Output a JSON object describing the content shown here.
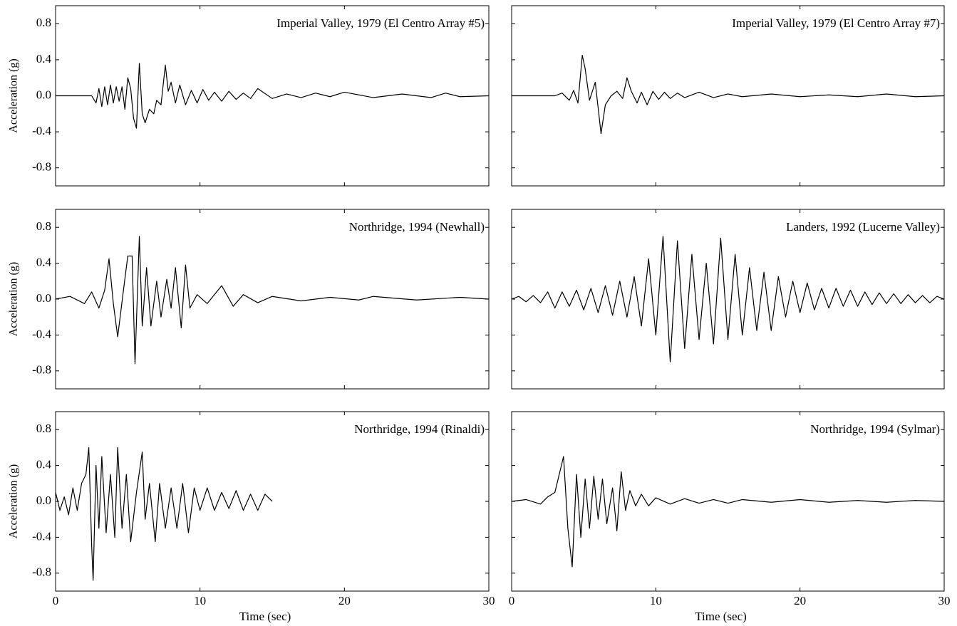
{
  "chart_data": [
    {
      "type": "line",
      "title": "Imperial Valley, 1979 (El Centro Array #5)",
      "ylabel": "Acceleration (g)",
      "color": "#000000",
      "x": [
        0,
        2.5,
        2.8,
        3.0,
        3.2,
        3.4,
        3.6,
        3.8,
        4.0,
        4.2,
        4.4,
        4.6,
        4.8,
        5.0,
        5.2,
        5.4,
        5.6,
        5.8,
        6.0,
        6.2,
        6.5,
        6.8,
        7.0,
        7.3,
        7.6,
        7.8,
        8.0,
        8.3,
        8.6,
        9.0,
        9.4,
        9.8,
        10.2,
        10.6,
        11,
        11.5,
        12,
        12.5,
        13,
        13.5,
        14,
        15,
        16,
        17,
        18,
        19,
        20,
        22,
        24,
        26,
        27,
        28,
        30
      ],
      "values": [
        0,
        0,
        -0.08,
        0.08,
        -0.12,
        0.1,
        -0.1,
        0.12,
        -0.08,
        0.1,
        -0.06,
        0.1,
        -0.15,
        0.2,
        0.08,
        -0.25,
        -0.36,
        0.36,
        -0.2,
        -0.3,
        -0.15,
        -0.2,
        -0.05,
        -0.1,
        0.34,
        0.05,
        0.15,
        -0.08,
        0.12,
        -0.1,
        0.06,
        -0.08,
        0.07,
        -0.05,
        0.04,
        -0.06,
        0.05,
        -0.04,
        0.03,
        -0.03,
        0.08,
        -0.03,
        0.02,
        -0.02,
        0.03,
        -0.01,
        0.04,
        -0.02,
        0.02,
        -0.02,
        0.03,
        -0.01,
        0
      ],
      "xlim": [
        0,
        30
      ],
      "ylim": [
        -1,
        1
      ],
      "xticks": [
        0,
        10,
        20,
        30
      ],
      "yticks": [
        -0.8,
        -0.4,
        {
          "value": 0,
          "label": "0.0"
        },
        0.4,
        0.8
      ],
      "xtick_labels": false,
      "ytick_labels": true
    },
    {
      "type": "line",
      "title": "Imperial Valley, 1979 (El Centro Array #7)",
      "color": "#000000",
      "x": [
        0,
        3,
        3.5,
        4,
        4.3,
        4.6,
        4.9,
        5.1,
        5.4,
        5.8,
        6.2,
        6.5,
        6.9,
        7.3,
        7.7,
        8.0,
        8.3,
        8.7,
        9.0,
        9.4,
        9.8,
        10.2,
        10.6,
        11,
        11.5,
        12,
        13,
        14,
        15,
        16,
        18,
        20,
        22,
        24,
        26,
        28,
        30
      ],
      "values": [
        0,
        0,
        0.03,
        -0.05,
        0.06,
        -0.08,
        0.45,
        0.3,
        -0.05,
        0.15,
        -0.42,
        -0.1,
        0,
        0.05,
        -0.03,
        0.2,
        0.05,
        -0.08,
        0.04,
        -0.1,
        0.05,
        -0.04,
        0.04,
        -0.03,
        0.03,
        -0.02,
        0.04,
        -0.02,
        0.02,
        -0.01,
        0.02,
        -0.01,
        0.01,
        -0.01,
        0.02,
        -0.01,
        0
      ],
      "xlim": [
        0,
        30
      ],
      "ylim": [
        -1,
        1
      ],
      "xticks": [
        0,
        10,
        20,
        30
      ],
      "yticks": [
        -0.8,
        -0.4,
        {
          "value": 0,
          "label": "0.0"
        },
        0.4,
        0.8
      ],
      "xtick_labels": false,
      "ytick_labels": false
    },
    {
      "type": "line",
      "title": "Northridge, 1994 (Newhall)",
      "ylabel": "Acceleration (g)",
      "color": "#000000",
      "x": [
        0,
        1,
        2,
        2.5,
        3,
        3.4,
        3.7,
        4.0,
        4.3,
        4.7,
        5.0,
        5.3,
        5.5,
        5.8,
        6.0,
        6.3,
        6.6,
        7.0,
        7.3,
        7.7,
        8.0,
        8.3,
        8.7,
        9.0,
        9.3,
        9.8,
        10.5,
        11.5,
        12.3,
        13,
        14,
        15,
        17,
        19,
        21,
        22,
        25,
        28,
        30
      ],
      "values": [
        0,
        0.03,
        -0.05,
        0.08,
        -0.1,
        0.1,
        0.45,
        -0.05,
        -0.42,
        0.1,
        0.48,
        0.48,
        -0.72,
        0.7,
        -0.3,
        0.35,
        -0.3,
        0.2,
        -0.2,
        0.22,
        -0.1,
        0.35,
        -0.32,
        0.38,
        -0.1,
        0.05,
        -0.05,
        0.15,
        -0.08,
        0.05,
        -0.04,
        0.03,
        -0.02,
        0.02,
        -0.01,
        0.03,
        -0.01,
        0.02,
        0
      ],
      "xlim": [
        0,
        30
      ],
      "ylim": [
        -1,
        1
      ],
      "xticks": [
        0,
        10,
        20,
        30
      ],
      "yticks": [
        -0.8,
        -0.4,
        {
          "value": 0,
          "label": "0.0"
        },
        0.4,
        0.8
      ],
      "xtick_labels": false,
      "ytick_labels": true
    },
    {
      "type": "line",
      "title": "Landers, 1992 (Lucerne Valley)",
      "color": "#000000",
      "x": [
        0,
        0.5,
        1,
        1.5,
        2,
        2.5,
        3,
        3.5,
        4,
        4.5,
        5,
        5.5,
        6,
        6.5,
        7,
        7.5,
        8,
        8.5,
        9,
        9.5,
        10,
        10.5,
        11,
        11.5,
        12,
        12.5,
        13,
        13.5,
        14,
        14.5,
        15,
        15.5,
        16,
        16.5,
        17,
        17.5,
        18,
        18.5,
        19,
        19.5,
        20,
        20.5,
        21,
        21.5,
        22,
        22.5,
        23,
        23.5,
        24,
        24.5,
        25,
        25.5,
        26,
        26.5,
        27,
        27.5,
        28,
        28.5,
        29,
        29.5,
        30
      ],
      "values": [
        0,
        0.03,
        -0.03,
        0.04,
        -0.04,
        0.08,
        -0.1,
        0.08,
        -0.08,
        0.1,
        -0.12,
        0.12,
        -0.15,
        0.15,
        -0.18,
        0.2,
        -0.2,
        0.25,
        -0.3,
        0.45,
        -0.4,
        0.7,
        -0.7,
        0.65,
        -0.55,
        0.5,
        -0.45,
        0.4,
        -0.5,
        0.68,
        -0.45,
        0.5,
        -0.4,
        0.35,
        -0.35,
        0.3,
        -0.35,
        0.25,
        -0.2,
        0.2,
        -0.15,
        0.18,
        -0.12,
        0.12,
        -0.1,
        0.12,
        -0.08,
        0.1,
        -0.08,
        0.08,
        -0.06,
        0.07,
        -0.05,
        0.06,
        -0.05,
        0.05,
        -0.04,
        0.04,
        -0.04,
        0.03,
        0
      ],
      "xlim": [
        0,
        30
      ],
      "ylim": [
        -1,
        1
      ],
      "xticks": [
        0,
        10,
        20,
        30
      ],
      "yticks": [
        -0.8,
        -0.4,
        {
          "value": 0,
          "label": "0.0"
        },
        0.4,
        0.8
      ],
      "xtick_labels": false,
      "ytick_labels": false
    },
    {
      "type": "line",
      "title": "Northridge, 1994 (Rinaldi)",
      "ylabel": "Acceleration (g)",
      "xlabel": "Time (sec)",
      "color": "#000000",
      "x": [
        0,
        0.3,
        0.6,
        0.9,
        1.2,
        1.5,
        1.8,
        2.1,
        2.3,
        2.5,
        2.6,
        2.8,
        3.0,
        3.2,
        3.5,
        3.8,
        4.1,
        4.3,
        4.6,
        4.9,
        5.2,
        5.6,
        6.0,
        6.2,
        6.5,
        6.9,
        7.2,
        7.6,
        8.0,
        8.4,
        8.8,
        9.2,
        9.6,
        10,
        10.5,
        11,
        11.5,
        12,
        12.5,
        13,
        13.5,
        14,
        14.5,
        15
      ],
      "values": [
        0.1,
        -0.1,
        0.05,
        -0.15,
        0.15,
        -0.1,
        0.2,
        0.3,
        0.6,
        -0.5,
        -0.88,
        0.4,
        -0.3,
        0.5,
        -0.35,
        0.3,
        -0.4,
        0.6,
        -0.3,
        0.3,
        -0.45,
        0.1,
        0.55,
        -0.2,
        0.2,
        -0.45,
        0.2,
        -0.3,
        0.15,
        -0.3,
        0.2,
        -0.35,
        0.15,
        -0.1,
        0.15,
        -0.1,
        0.1,
        -0.08,
        0.12,
        -0.1,
        0.08,
        -0.1,
        0.08,
        0
      ],
      "xlim": [
        0,
        30
      ],
      "ylim": [
        -1,
        1
      ],
      "xticks": [
        0,
        10,
        20,
        30
      ],
      "yticks": [
        -0.8,
        -0.4,
        {
          "value": 0,
          "label": "0.0"
        },
        0.4,
        0.8
      ],
      "xtick_labels": true,
      "ytick_labels": true
    },
    {
      "type": "line",
      "title": "Northridge, 1994 (Sylmar)",
      "xlabel": "Time (sec)",
      "color": "#000000",
      "x": [
        0,
        1,
        2,
        2.5,
        3,
        3.3,
        3.6,
        3.9,
        4.2,
        4.5,
        4.8,
        5.1,
        5.4,
        5.7,
        6.0,
        6.3,
        6.6,
        7.0,
        7.3,
        7.6,
        7.9,
        8.2,
        8.6,
        9,
        9.5,
        10,
        11,
        12,
        13,
        14,
        15,
        16,
        18,
        20,
        22,
        24,
        26,
        28,
        30
      ],
      "values": [
        0,
        0.02,
        -0.03,
        0.05,
        0.1,
        0.3,
        0.5,
        -0.3,
        -0.73,
        0.3,
        -0.4,
        0.25,
        -0.3,
        0.28,
        -0.2,
        0.25,
        -0.25,
        0.15,
        -0.33,
        0.33,
        -0.1,
        0.12,
        -0.05,
        0.08,
        -0.05,
        0.04,
        -0.03,
        0.03,
        -0.02,
        0.02,
        -0.02,
        0.02,
        -0.01,
        0.02,
        -0.01,
        0.01,
        -0.01,
        0.01,
        0
      ],
      "xlim": [
        0,
        30
      ],
      "ylim": [
        -1,
        1
      ],
      "xticks": [
        0,
        10,
        20,
        30
      ],
      "yticks": [
        -0.8,
        -0.4,
        {
          "value": 0,
          "label": "0.0"
        },
        0.4,
        0.8
      ],
      "xtick_labels": true,
      "ytick_labels": false
    }
  ]
}
